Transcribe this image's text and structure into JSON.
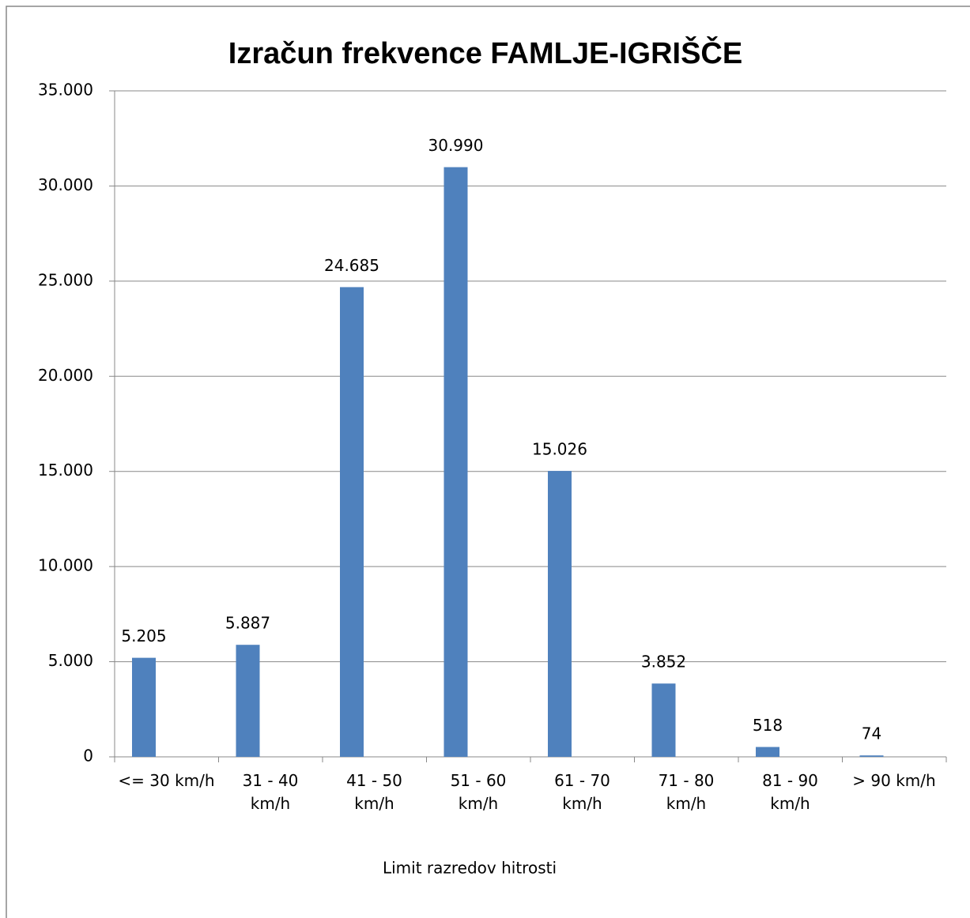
{
  "chart_data": {
    "type": "bar",
    "title": "Izračun frekvence FAMLJE-IGRIŠČE",
    "x_label": "Limit razredov hitrosti",
    "categories": [
      "<= 30 km/h",
      "31 - 40\nkm/h",
      "41 - 50\nkm/h",
      "51 - 60\nkm/h",
      "61 - 70\nkm/h",
      "71 - 80\nkm/h",
      "81 - 90\nkm/h",
      "> 90 km/h"
    ],
    "values": [
      5205,
      5887,
      24685,
      30990,
      15026,
      3852,
      518,
      74
    ],
    "value_labels": [
      "5.205",
      "5.887",
      "24.685",
      "30.990",
      "15.026",
      "3.852",
      "518",
      "74"
    ],
    "color": "#4f81bd",
    "ylim": [
      0,
      35000
    ],
    "yticks": [
      0,
      {
        "value": 5000,
        "label": "5.000"
      },
      {
        "value": 10000,
        "label": "10.000"
      },
      {
        "value": 15000,
        "label": "15.000"
      },
      {
        "value": 20000,
        "label": "20.000"
      },
      {
        "value": 25000,
        "label": "25.000"
      },
      {
        "value": 30000,
        "label": "30.000"
      },
      {
        "value": 35000,
        "label": "35.000"
      }
    ],
    "grid": true
  }
}
